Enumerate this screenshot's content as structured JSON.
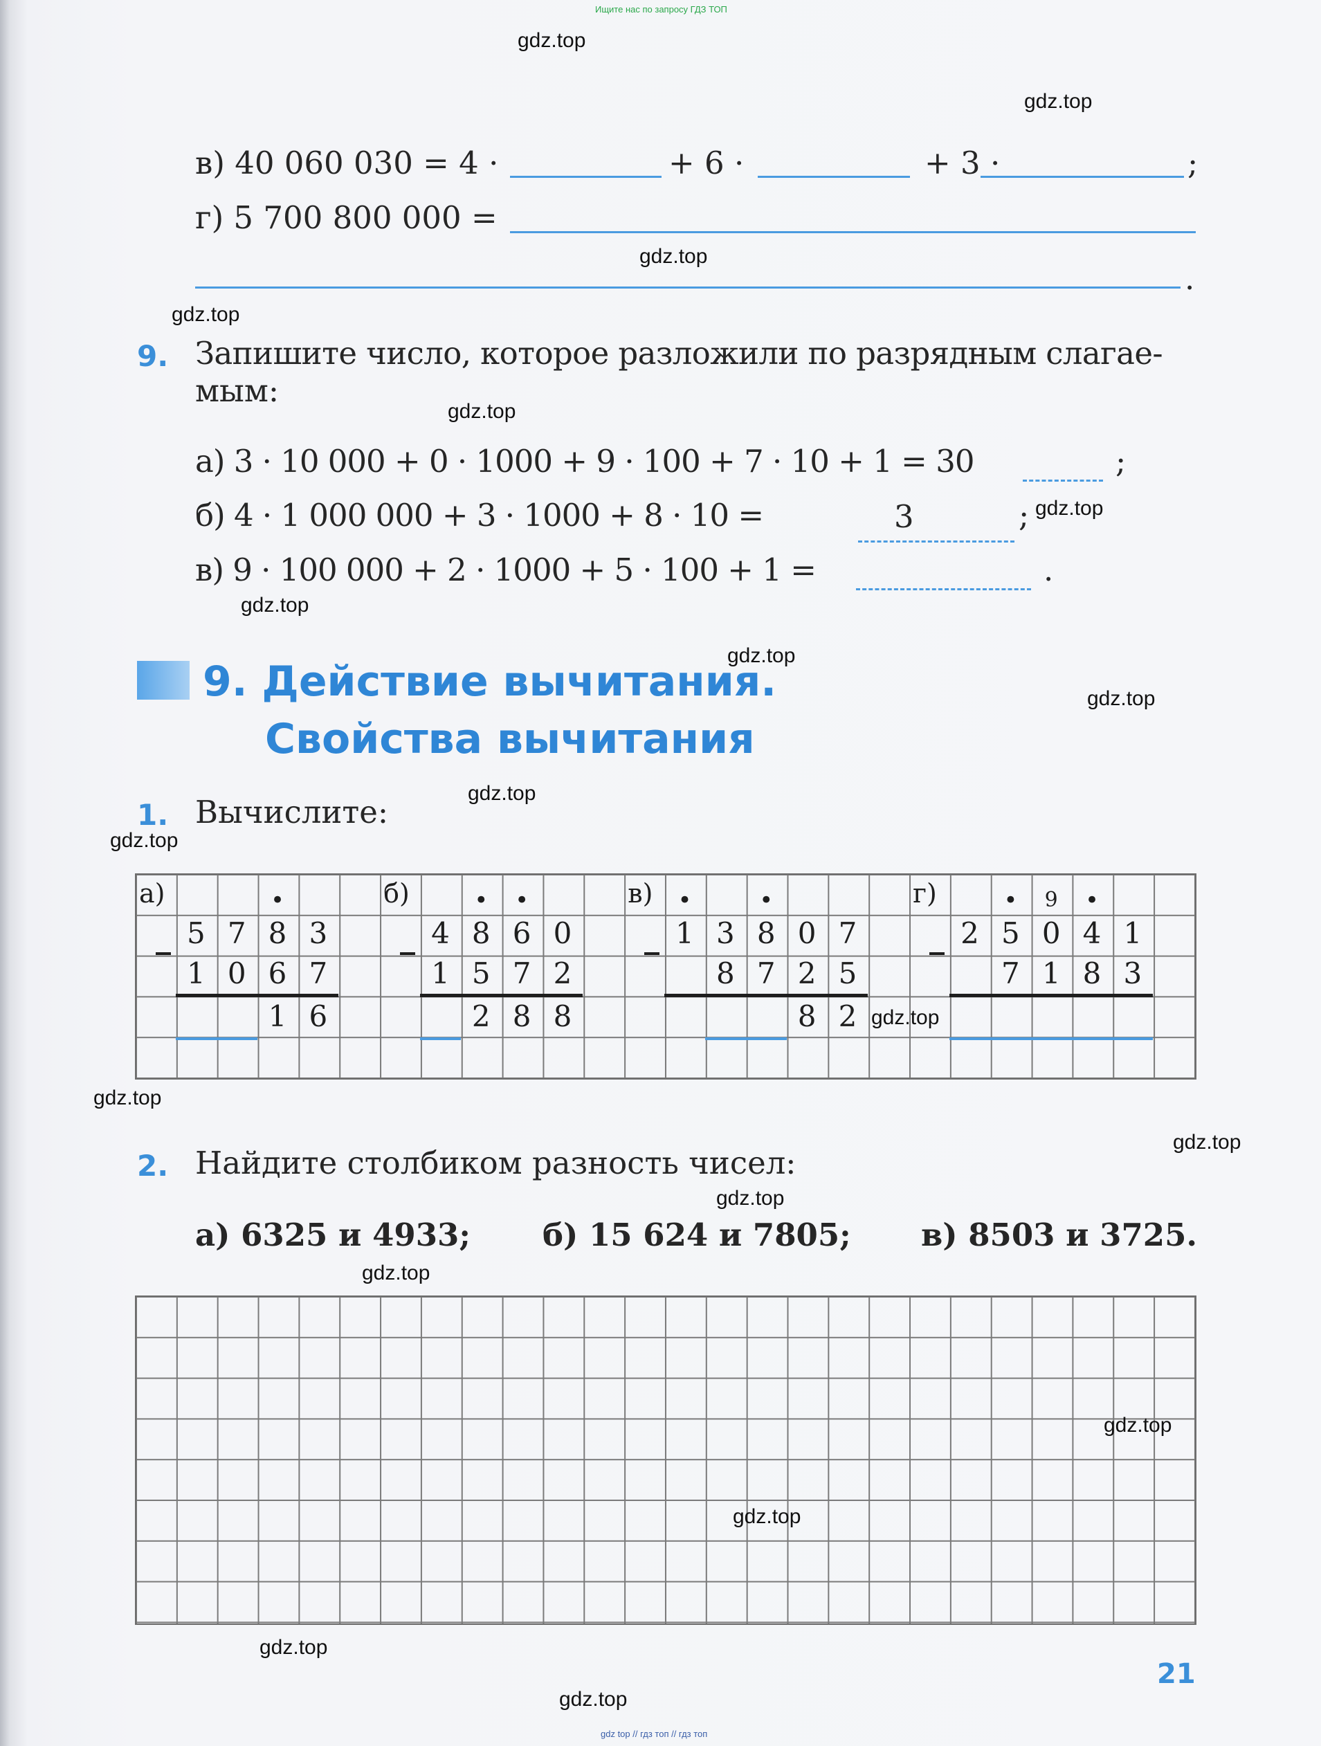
{
  "top_banner": "Ищите нас по запросу ГДЗ ТОП",
  "bottom_banner": "gdz top // гдз топ // гдз топ",
  "watermarks": [
    "gdz.top",
    "gdz.top",
    "gdz.top",
    "gdz.top",
    "gdz.top",
    "gdz.top",
    "gdz.top",
    "gdz.top",
    "gdz.top",
    "gdz.top",
    "gdz.top",
    "gdz.top",
    "gdz.top",
    "gdz.top",
    "gdz.top",
    "gdz.top",
    "gdz.top",
    "gdz.top",
    "gdz.top",
    "gdz.top"
  ],
  "task8": {
    "v": {
      "left": "в) 40 060 030 = 4 ·",
      "plus6": "+ 6 ·",
      "plus3": "+ 3 ·",
      "end": ";"
    },
    "g": {
      "left": "г) 5 700 800 000 =",
      "end": "."
    }
  },
  "task9": {
    "number": "9.",
    "prompt_line1": "Запишите число, которое разложили по разрядным слагае-",
    "prompt_line2": "мым:",
    "a": {
      "expr": "а) 3 · 10 000 + 0 · 1000 + 9 · 100 + 7 · 10 + 1 = 30",
      "end": ";"
    },
    "b": {
      "expr": "б) 4 · 1 000 000 + 3 · 1000 + 8 · 10 =",
      "hint": "3",
      "end": ";"
    },
    "v": {
      "expr": "в) 9 · 100 000 + 2 · 1000 + 5 · 100 + 1 =",
      "end": "."
    }
  },
  "section": {
    "title_line1": "9. Действие вычитания.",
    "title_line2": "Свойства вычитания"
  },
  "ex1": {
    "number": "1.",
    "prompt": "Вычислите:",
    "problems": [
      {
        "label": "а)",
        "marks": [
          "",
          "",
          "•",
          ""
        ],
        "top": [
          "5",
          "7",
          "8",
          "3"
        ],
        "bottom": [
          "1",
          "0",
          "6",
          "7"
        ],
        "result": [
          "1",
          "6"
        ]
      },
      {
        "label": "б)",
        "marks": [
          "",
          "•",
          "•",
          ""
        ],
        "top": [
          "4",
          "8",
          "6",
          "0"
        ],
        "bottom": [
          "1",
          "5",
          "7",
          "2"
        ],
        "result": [
          "2",
          "8",
          "8"
        ]
      },
      {
        "label": "в)",
        "marks": [
          "•",
          "",
          "•",
          "",
          ""
        ],
        "top": [
          "1",
          "3",
          "8",
          "0",
          "7"
        ],
        "bottom": [
          "8",
          "7",
          "2",
          "5"
        ],
        "result": [
          "8",
          "2"
        ]
      },
      {
        "label": "г)",
        "marks": [
          "",
          "•",
          "9",
          "•",
          ""
        ],
        "top": [
          "2",
          "5",
          "0",
          "4",
          "1"
        ],
        "bottom": [
          "7",
          "1",
          "8",
          "3"
        ],
        "result": []
      }
    ]
  },
  "ex2": {
    "number": "2.",
    "prompt": "Найдите столбиком разность чисел:",
    "a": "а) 6325 и 4933;",
    "b": "б) 15 624 и 7805;",
    "v": "в) 8503 и 3725."
  },
  "page_number": "21",
  "colors": {
    "accent_blue": "#3b8fd9",
    "heading_blue": "#2f86d6",
    "text": "#262626"
  }
}
